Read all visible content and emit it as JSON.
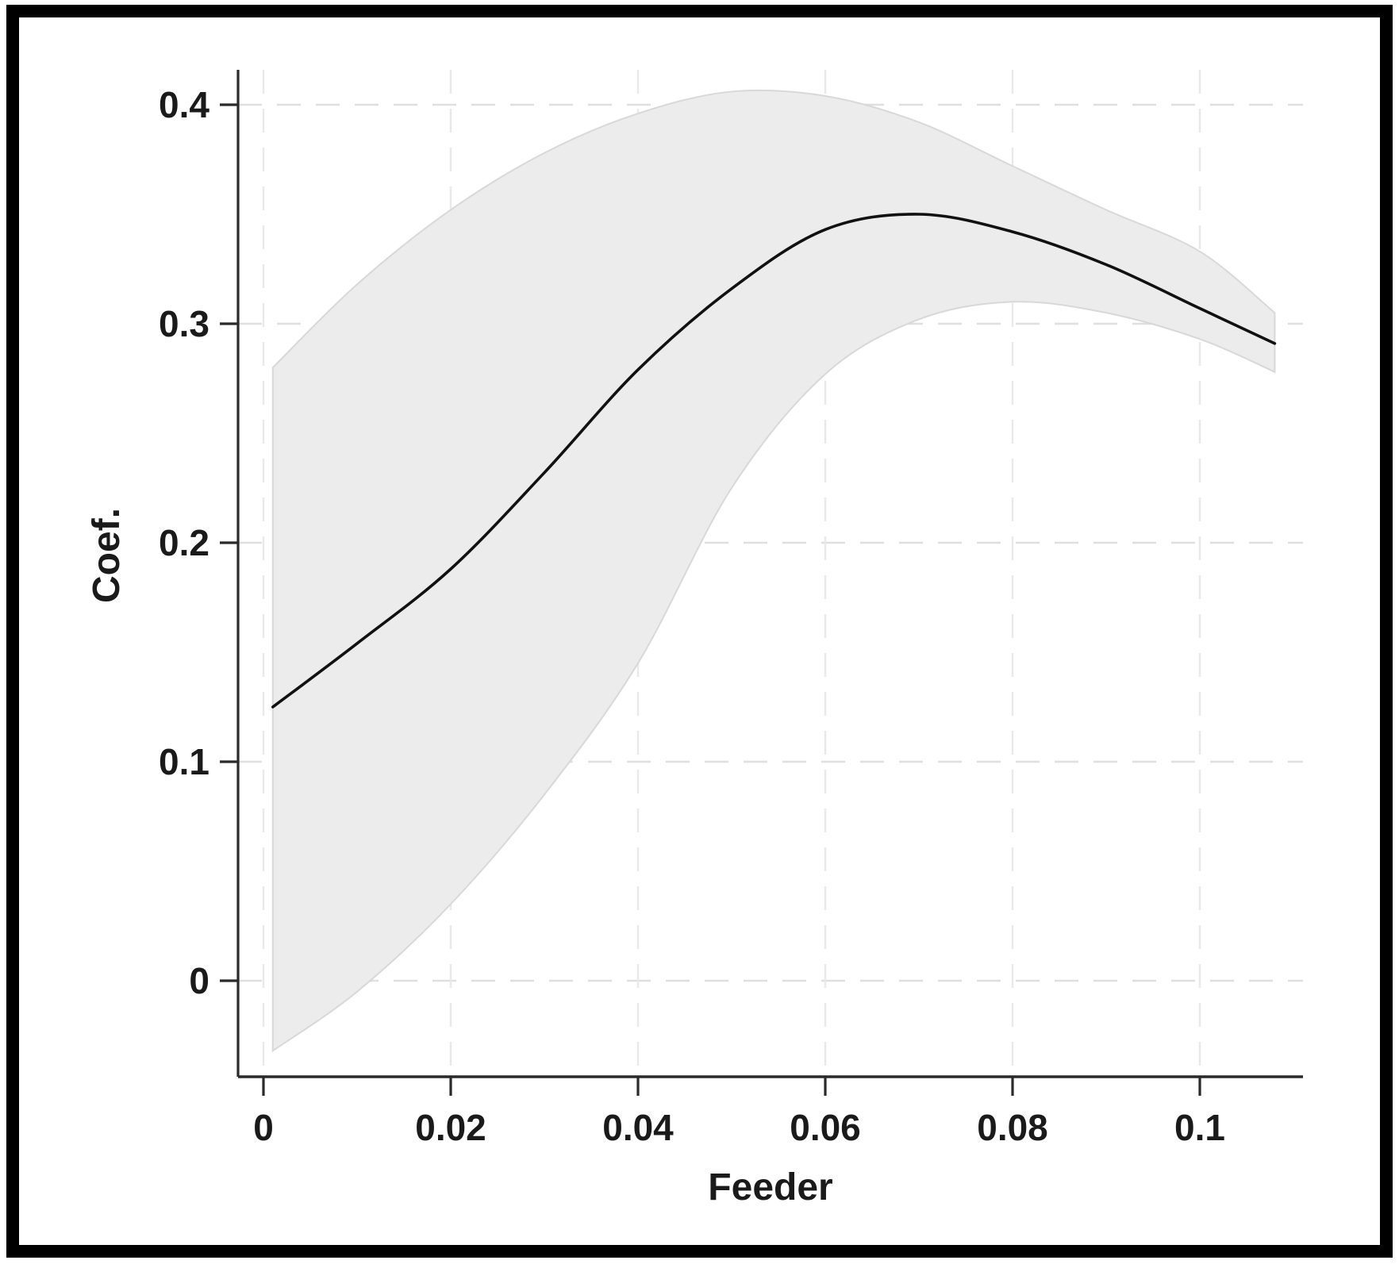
{
  "chart_data": {
    "type": "area",
    "title": "",
    "xlabel": "Feeder",
    "ylabel": "Coef.",
    "legend": "none",
    "grid": "dashed",
    "xlim": [
      -0.0027,
      0.111
    ],
    "ylim": [
      -0.0438,
      0.416
    ],
    "x_ticks": [
      0,
      0.02,
      0.04,
      0.06,
      0.08,
      0.1
    ],
    "x_tick_labels": [
      "0",
      "0.02",
      "0.04",
      "0.06",
      "0.08",
      "0.1"
    ],
    "y_ticks": [
      0,
      0.1,
      0.2,
      0.3,
      0.4
    ],
    "y_tick_labels": [
      "0",
      "0.1",
      "0.2",
      "0.3",
      "0.4"
    ],
    "x": [
      0.001,
      0.01,
      0.02,
      0.03,
      0.04,
      0.05,
      0.06,
      0.07,
      0.08,
      0.09,
      0.1,
      0.108
    ],
    "series": [
      {
        "name": "fit",
        "values": [
          0.125,
          0.154,
          0.188,
          0.232,
          0.279,
          0.316,
          0.343,
          0.35,
          0.342,
          0.327,
          0.307,
          0.291
        ]
      },
      {
        "name": "ci_upper",
        "values": [
          0.28,
          0.318,
          0.352,
          0.378,
          0.396,
          0.406,
          0.404,
          0.392,
          0.372,
          0.352,
          0.333,
          0.305
        ]
      },
      {
        "name": "ci_lower",
        "values": [
          -0.032,
          -0.005,
          0.035,
          0.085,
          0.145,
          0.225,
          0.277,
          0.302,
          0.31,
          0.305,
          0.293,
          0.278
        ]
      }
    ],
    "colors": {
      "line": "#111111",
      "band_fill": "#ececec",
      "band_edge": "#d8d8d8",
      "grid_horizontal": "#dfdfdf",
      "grid_vertical": "#e9e9e9",
      "axis": "#2a2a2a",
      "text": "#1a1a1a",
      "frame": "#000000",
      "background": "#ffffff"
    }
  }
}
